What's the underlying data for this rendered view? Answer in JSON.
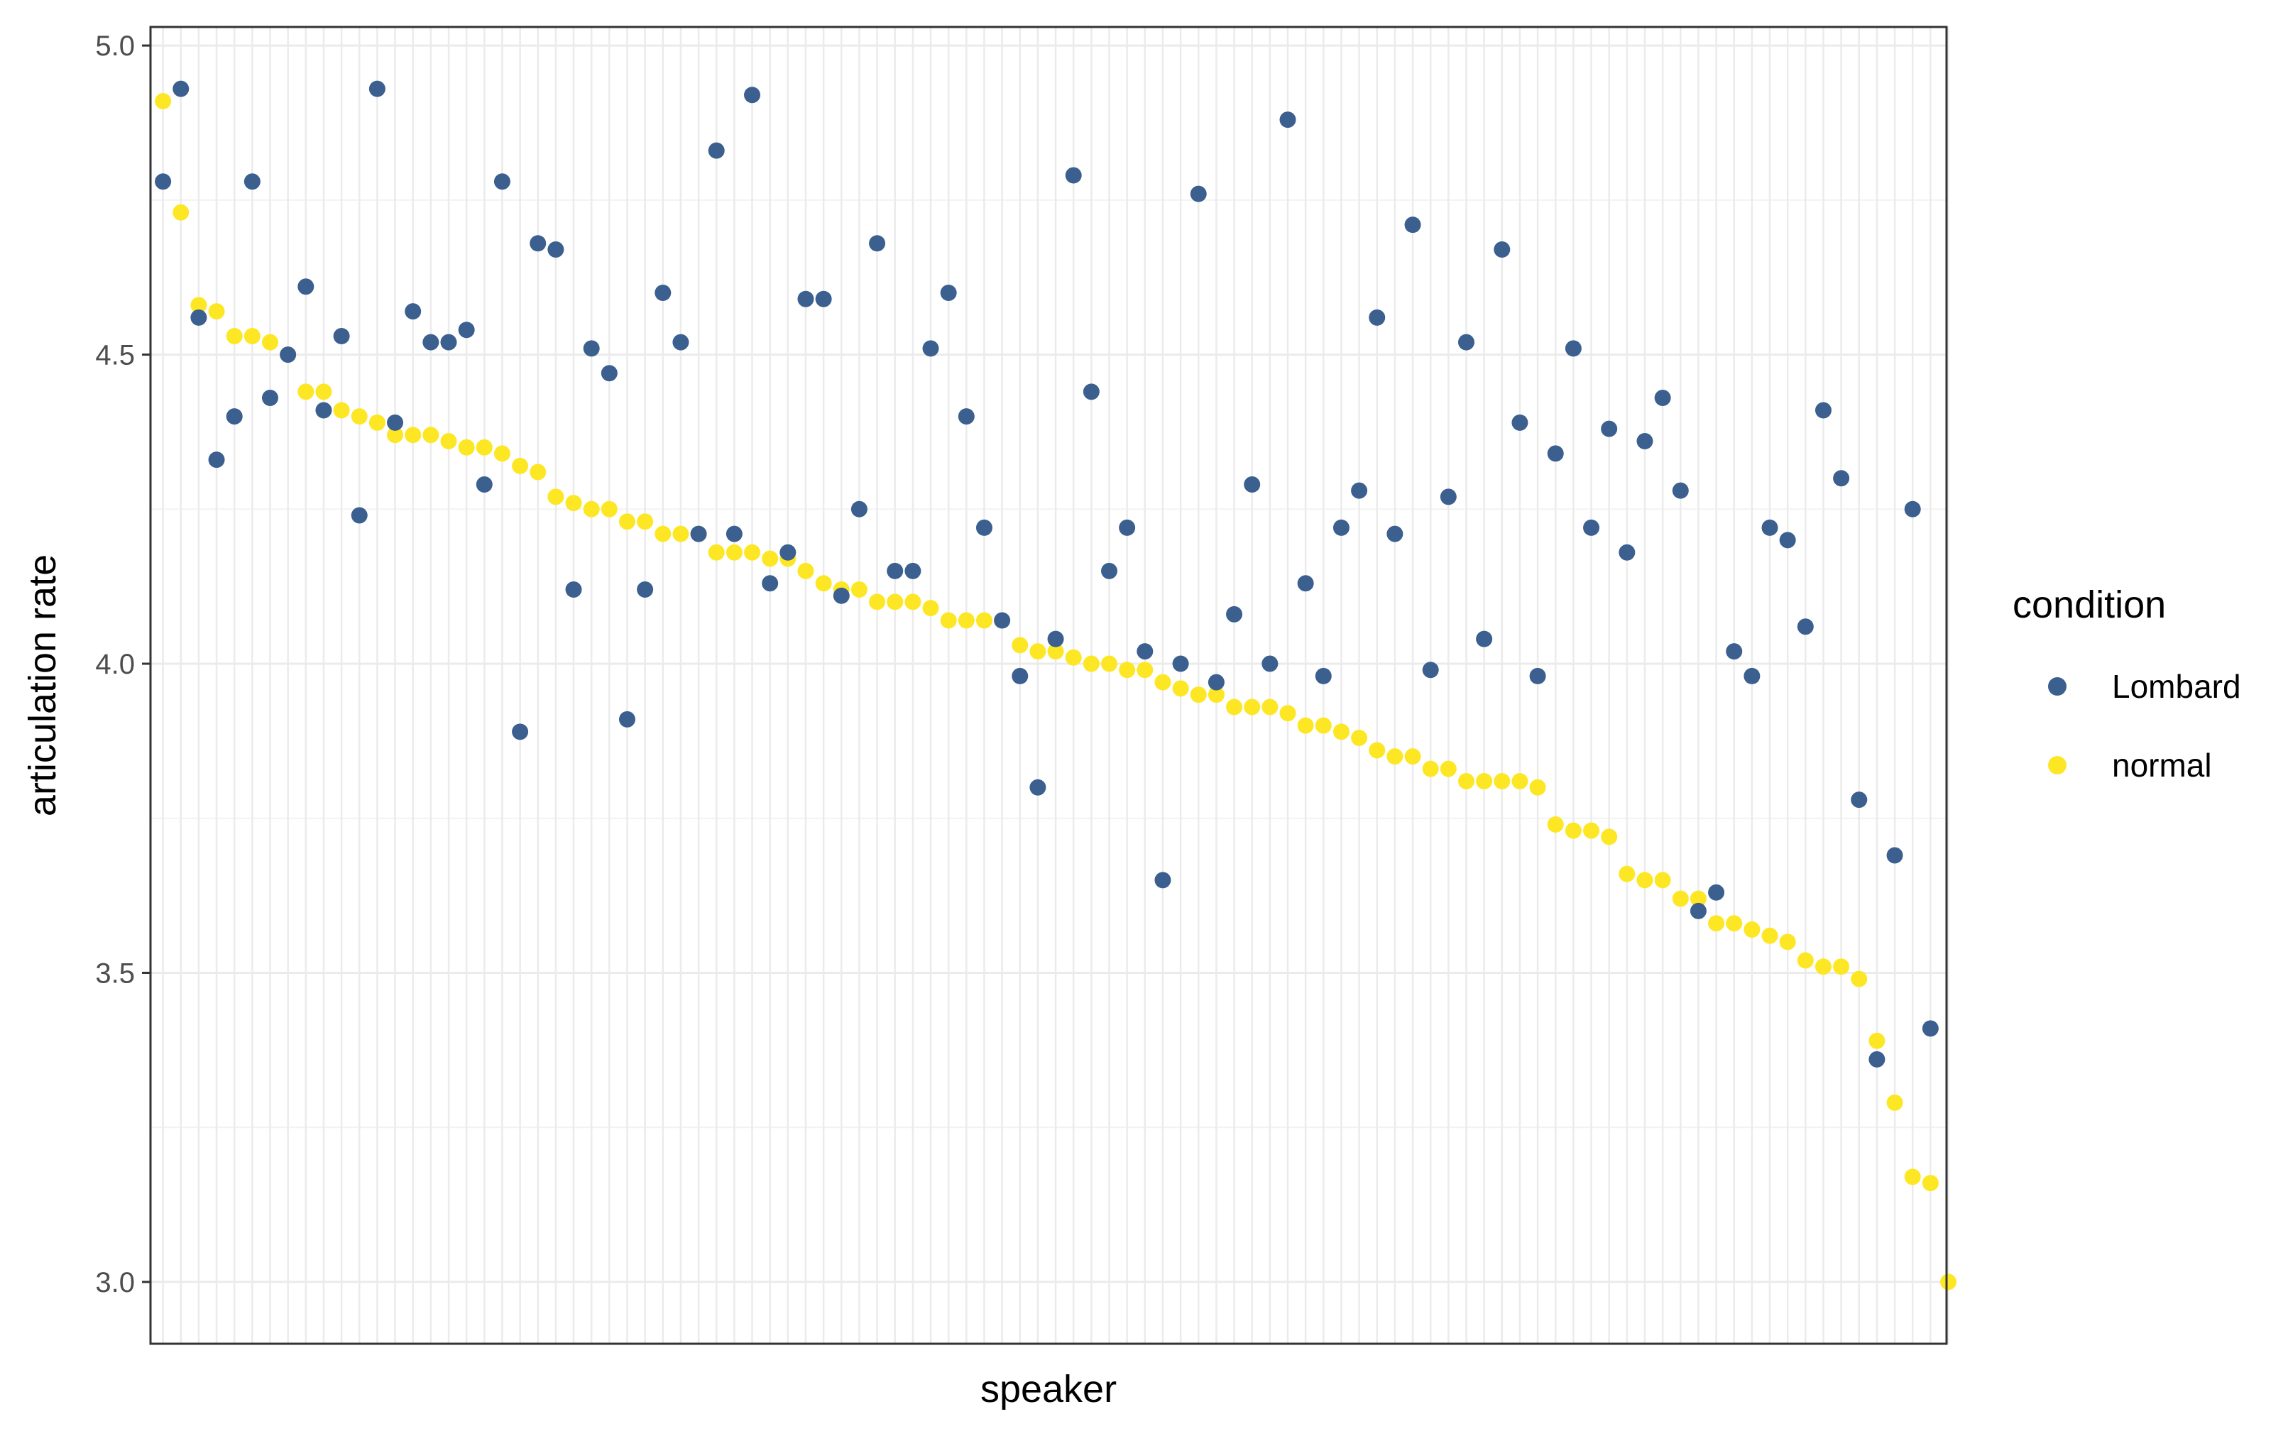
{
  "chart_data": {
    "type": "scatter",
    "title": "",
    "xlabel": "speaker",
    "ylabel": "articulation rate",
    "ylim": [
      2.9,
      5.03
    ],
    "yticks": [
      3.0,
      3.5,
      4.0,
      4.5,
      5.0
    ],
    "ytick_labels": [
      "3.0",
      "3.5",
      "4.0",
      "4.5",
      "5.0"
    ],
    "x_tick_labels_shown": false,
    "grid": true,
    "legend": {
      "title": "condition",
      "position": "right"
    },
    "series": [
      {
        "name": "normal",
        "color": "#FDE725",
        "values": [
          4.91,
          4.73,
          4.58,
          4.57,
          4.53,
          4.53,
          4.52,
          4.5,
          4.44,
          4.44,
          4.41,
          4.4,
          4.39,
          4.37,
          4.37,
          4.37,
          4.36,
          4.35,
          4.35,
          4.34,
          4.32,
          4.31,
          4.27,
          4.26,
          4.25,
          4.25,
          4.23,
          4.23,
          4.21,
          4.21,
          4.21,
          4.18,
          4.18,
          4.18,
          4.17,
          4.17,
          4.15,
          4.13,
          4.12,
          4.12,
          4.1,
          4.1,
          4.1,
          4.09,
          4.07,
          4.07,
          4.07,
          4.07,
          4.03,
          4.02,
          4.02,
          4.01,
          4.0,
          4.0,
          3.99,
          3.99,
          3.97,
          3.96,
          3.95,
          3.95,
          3.93,
          3.93,
          3.93,
          3.92,
          3.9,
          3.9,
          3.89,
          3.88,
          3.86,
          3.85,
          3.85,
          3.83,
          3.83,
          3.81,
          3.81,
          3.81,
          3.81,
          3.8,
          3.74,
          3.73,
          3.73,
          3.72,
          3.66,
          3.65,
          3.65,
          3.62,
          3.62,
          3.58,
          3.58,
          3.57,
          3.56,
          3.55,
          3.52,
          3.51,
          3.51,
          3.49,
          3.39,
          3.29,
          3.17,
          3.16,
          3.0
        ]
      },
      {
        "name": "Lombard",
        "color": "#3B5F8E",
        "values": [
          4.78,
          4.93,
          4.56,
          4.33,
          4.4,
          4.78,
          4.43,
          4.5,
          4.61,
          4.41,
          4.53,
          4.24,
          4.93,
          4.39,
          4.57,
          4.52,
          4.52,
          4.54,
          4.29,
          4.78,
          3.89,
          4.68,
          4.67,
          4.12,
          4.51,
          4.47,
          3.91,
          4.12,
          4.6,
          4.52,
          4.21,
          4.83,
          4.21,
          4.92,
          4.13,
          4.18,
          4.59,
          4.59,
          4.11,
          4.25,
          4.68,
          4.15,
          4.15,
          4.51,
          4.6,
          4.4,
          4.22,
          4.07,
          3.98,
          3.8,
          4.04,
          4.79,
          4.44,
          4.15,
          4.22,
          4.02,
          3.65,
          4.0,
          4.76,
          3.97,
          4.08,
          4.29,
          4.0,
          4.88,
          4.13,
          3.98,
          4.22,
          4.28,
          4.56,
          4.21,
          4.71,
          3.99,
          4.27,
          4.52,
          4.04,
          4.67,
          4.39,
          3.98,
          4.34,
          4.51,
          4.22,
          4.38,
          4.18,
          4.36,
          4.43,
          4.28,
          3.6,
          3.63,
          4.02,
          3.98,
          4.22,
          4.2,
          4.06,
          4.41,
          4.3,
          3.78,
          3.36,
          3.69,
          4.25,
          3.41,
          null
        ]
      }
    ]
  }
}
